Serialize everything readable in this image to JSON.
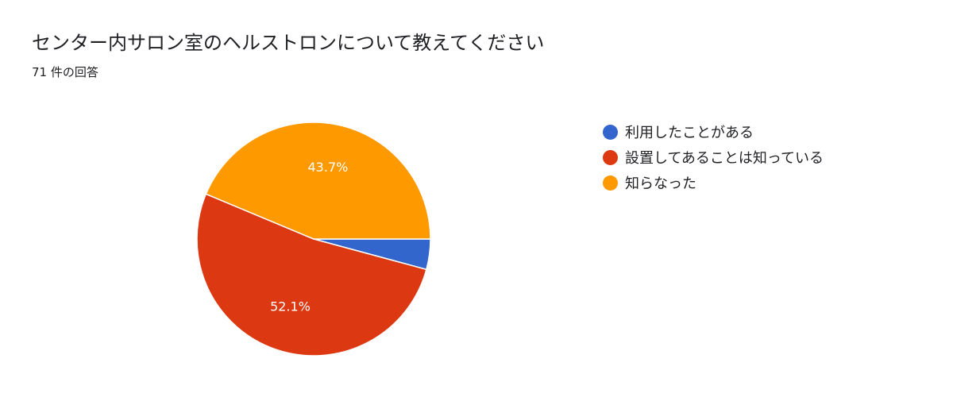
{
  "header": {
    "title": "センター内サロン室のヘルストロンについて教えてください",
    "response_count": "71 件の回答"
  },
  "chart_data": {
    "type": "pie",
    "title": "センター内サロン室のヘルストロンについて教えてください",
    "subtitle": "71 件の回答",
    "legend_position": "right",
    "slices": [
      {
        "label": "利用したことがある",
        "value": 4.2,
        "display": "",
        "color": "#3366cc"
      },
      {
        "label": "設置してあることは知っている",
        "value": 52.1,
        "display": "52.1%",
        "color": "#dc3912"
      },
      {
        "label": "知らなった",
        "value": 43.7,
        "display": "43.7%",
        "color": "#ff9900"
      }
    ]
  }
}
